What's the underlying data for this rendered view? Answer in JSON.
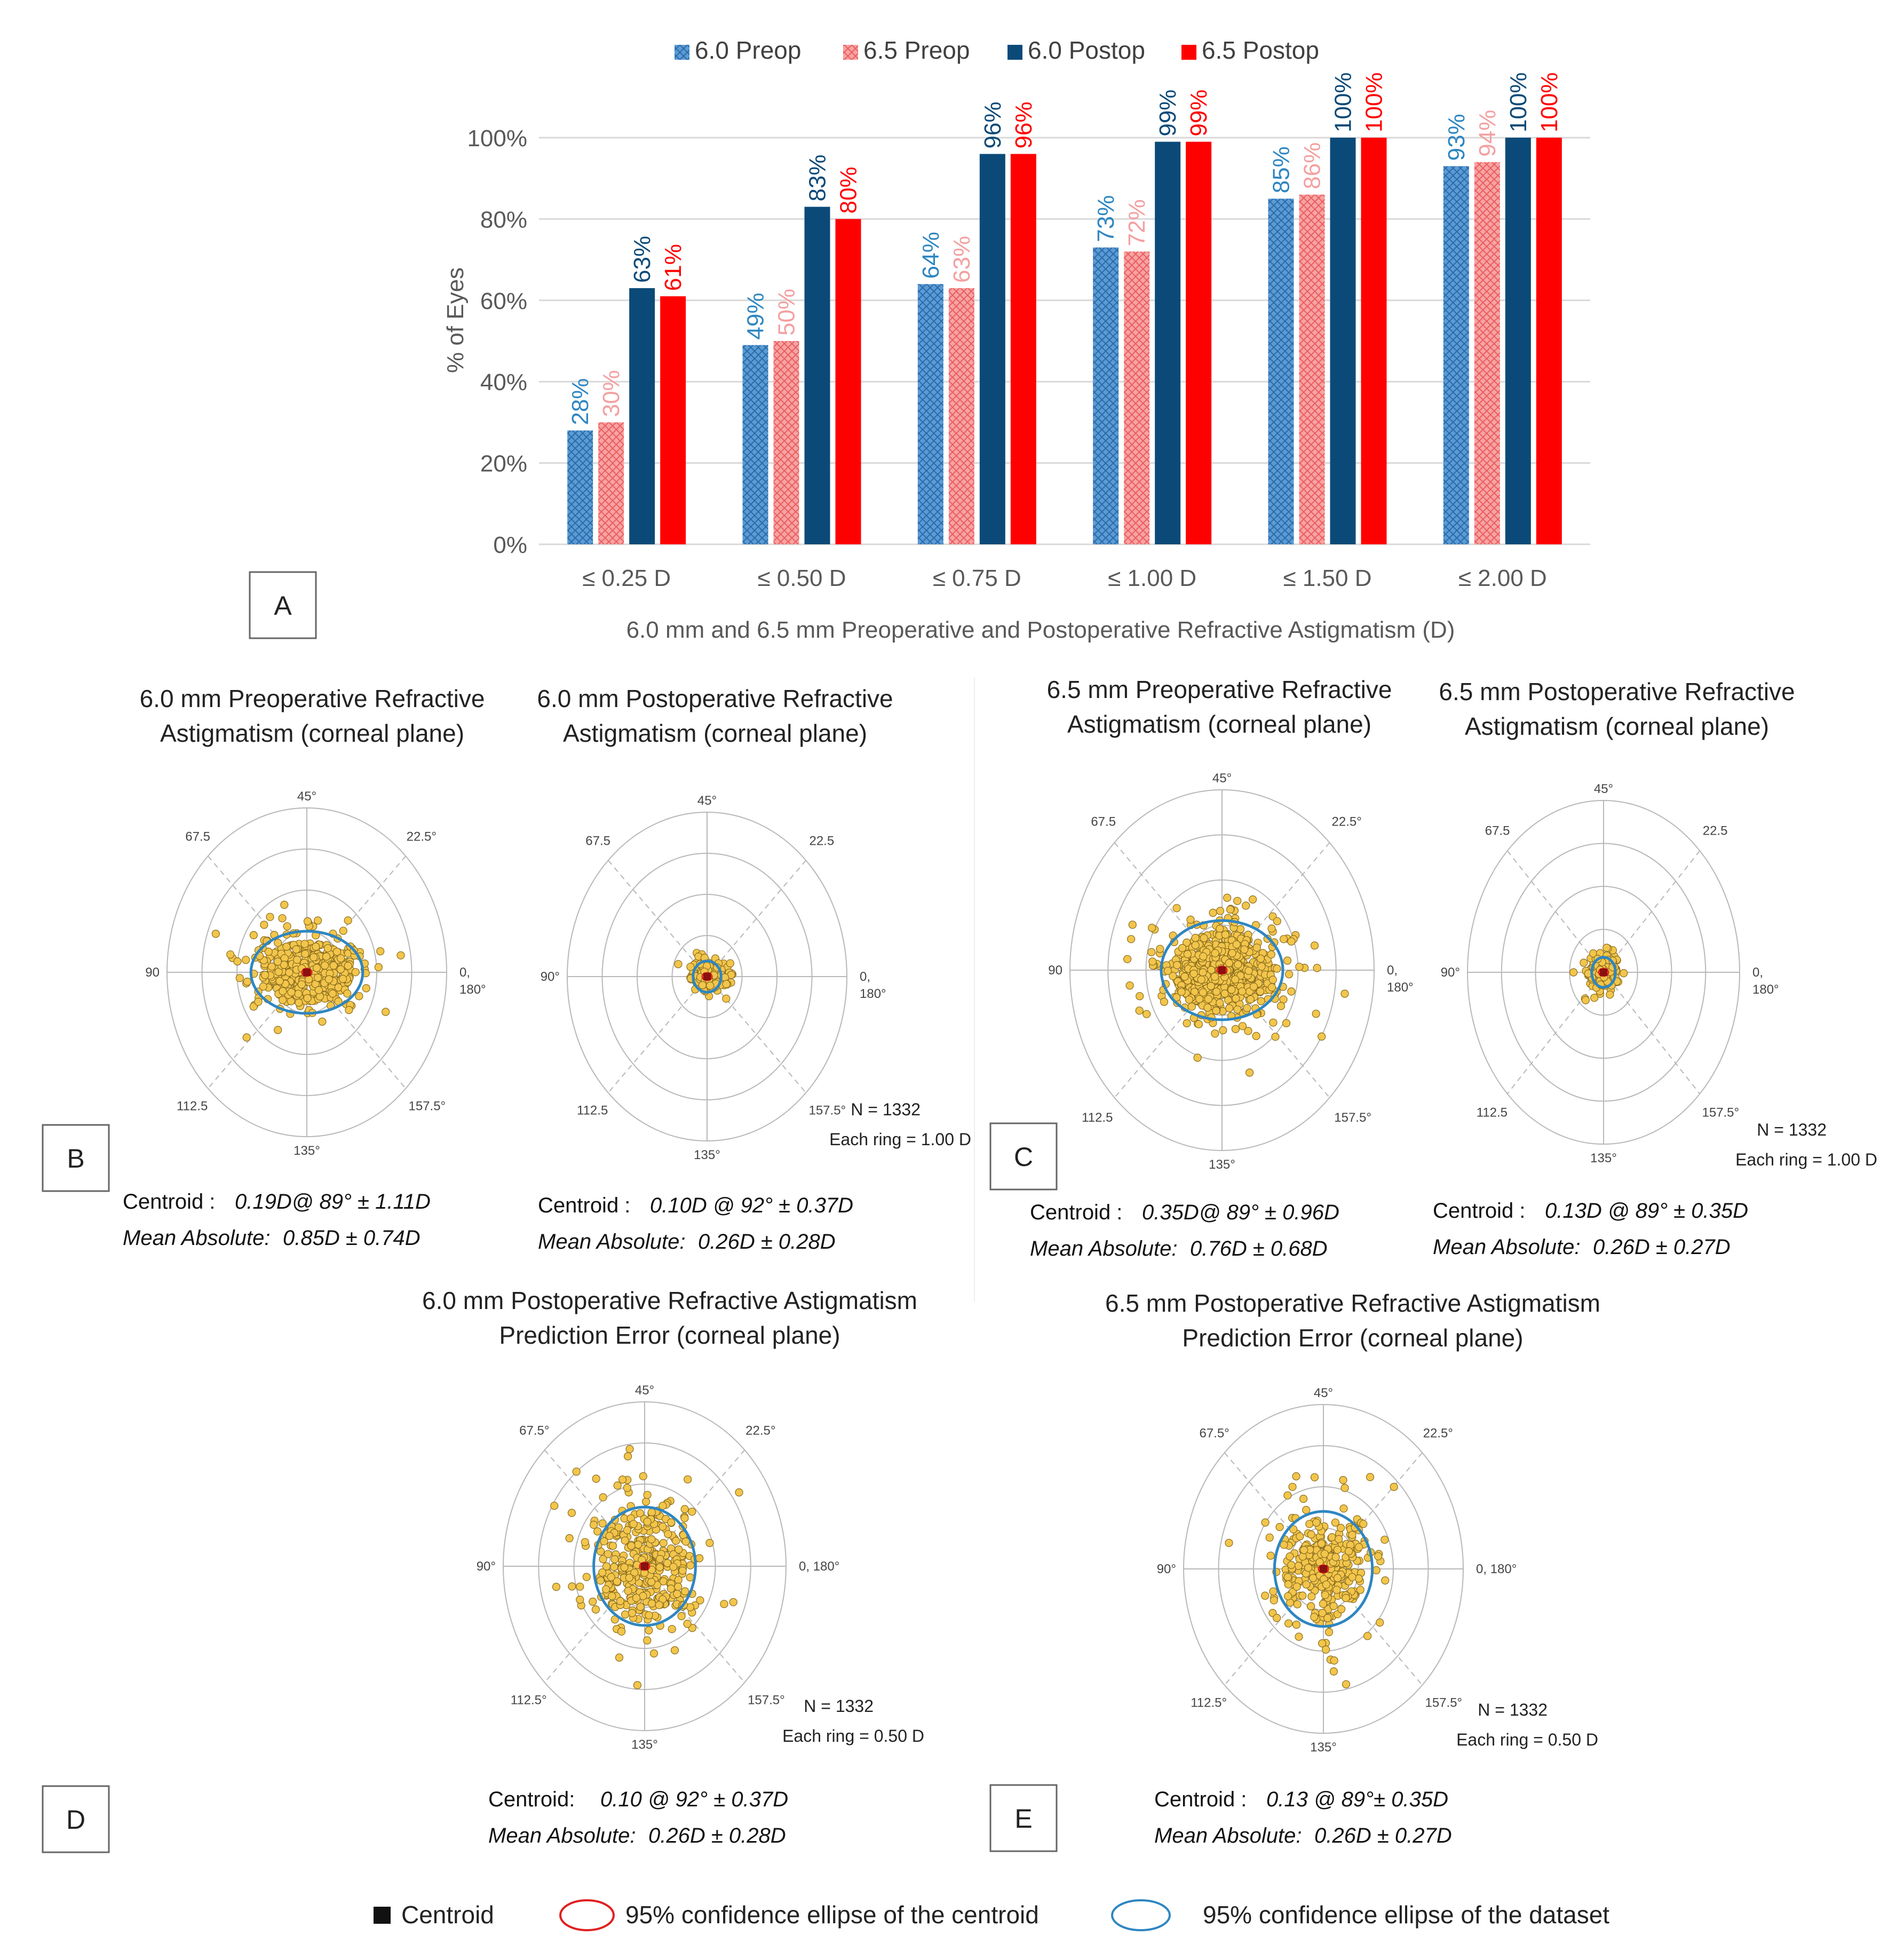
{
  "colors": {
    "pre60": "#3b82b8",
    "pre65": "#f28b8b",
    "post60": "#0b4a78",
    "post65": "#ff0000",
    "pre60_label": "#2e86c1",
    "pre65_label": "#f4a0a0",
    "post60_label": "#0b4a78",
    "post65_label": "#ff0000",
    "point": "#f2c54b",
    "point_stroke": "#8a6d1e",
    "dataset_ellipse": "#2e86c1",
    "centroid_ellipse": "#e02020",
    "centroid": "#111111",
    "grid": "#d9d9d9",
    "axis_text": "#595959",
    "polar_grid": "#b8b8b8"
  },
  "panel_labels": {
    "a": "A",
    "b": "B",
    "c": "C",
    "d": "D",
    "e": "E"
  },
  "chart_data": [
    {
      "id": "A",
      "type": "bar",
      "title": "",
      "xlabel": "6.0 mm and 6.5 mm Preoperative and Postoperative Refractive Astigmatism (D)",
      "ylabel": "% of Eyes",
      "ylim": [
        0,
        100
      ],
      "yticks": [
        "0%",
        "20%",
        "40%",
        "60%",
        "80%",
        "100%"
      ],
      "ytick_values": [
        0,
        20,
        40,
        60,
        80,
        100
      ],
      "grid": true,
      "legend_position": "top",
      "categories": [
        "≤ 0.25 D",
        "≤ 0.50 D",
        "≤ 0.75 D",
        "≤ 1.00 D",
        "≤ 1.50 D",
        "≤ 2.00 D"
      ],
      "series": [
        {
          "name": "6.0 Preop",
          "values": [
            28,
            49,
            64,
            73,
            85,
            93
          ],
          "labels": [
            "28%",
            "49%",
            "64%",
            "73%",
            "85%",
            "93%"
          ]
        },
        {
          "name": "6.5 Preop",
          "values": [
            30,
            50,
            63,
            72,
            86,
            94
          ],
          "labels": [
            "30%",
            "50%",
            "63%",
            "72%",
            "86%",
            "94%"
          ]
        },
        {
          "name": "6.0 Postop",
          "values": [
            63,
            83,
            96,
            99,
            100,
            100
          ],
          "labels": [
            "63%",
            "83%",
            "96%",
            "99%",
            "100%",
            "100%"
          ]
        },
        {
          "name": "6.5 Postop",
          "values": [
            61,
            80,
            96,
            99,
            100,
            100
          ],
          "labels": [
            "61%",
            "80%",
            "96%",
            "99%",
            "100%",
            "100%"
          ]
        }
      ]
    },
    {
      "id": "B1",
      "type": "scatter",
      "title": "6.0 mm Preoperative Refractive Astigmatism (corneal plane)",
      "title_lines": [
        "6.0 mm Preoperative Refractive",
        "Astigmatism (corneal plane)"
      ],
      "angle_labels": {
        "a45": "45°",
        "a22": "22.5°",
        "a0": "0,",
        "a180": "180°",
        "a157": "157.5°",
        "a135": "135°",
        "a112": "112.5",
        "a90": "90",
        "a67": "67.5"
      },
      "rings": 4,
      "ring_unit_d": 1.0,
      "spread_x_d": 2.3,
      "spread_y_d": 1.3,
      "dataset_ellipse_d": [
        1.6,
        1.0
      ],
      "stats": {
        "centroid_label": "Centroid :",
        "centroid_value": "0.19D@ 89° ±  1.11D",
        "mean_label": "Mean Absolute:",
        "mean_value": "0.85D ±  0.74D"
      }
    },
    {
      "id": "B2",
      "type": "scatter",
      "title": "6.0 mm Postoperative Refractive Astigmatism (corneal plane)",
      "title_lines": [
        "6.0 mm Postoperative Refractive",
        "Astigmatism (corneal plane)"
      ],
      "angle_labels": {
        "a45": "45°",
        "a22": "22.5",
        "a0": "0,",
        "a180": "180°",
        "a157": "157.5°",
        "a135": "135°",
        "a112": "112.5",
        "a90": "90°",
        "a67": "67.5"
      },
      "rings": 4,
      "ring_unit_d": 1.0,
      "spread_x_d": 0.7,
      "spread_y_d": 0.5,
      "dataset_ellipse_d": [
        0.4,
        0.38
      ],
      "n_text": "N = 1332",
      "ring_text": "Each ring = 1.00 D",
      "stats": {
        "centroid_label": "Centroid :",
        "centroid_value": "0.10D @ 92° ± 0.37D",
        "mean_label": "Mean Absolute:",
        "mean_value": "0.26D ± 0.28D"
      }
    },
    {
      "id": "C1",
      "type": "scatter",
      "title": "6.5 mm Preoperative Refractive Astigmatism (corneal plane)",
      "title_lines": [
        "6.5 mm Preoperative Refractive",
        "Astigmatism (corneal plane)"
      ],
      "angle_labels": {
        "a45": "45°",
        "a22": "22.5°",
        "a0": "0,",
        "a180": "180°",
        "a157": "157.5°",
        "a135": "135°",
        "a112": "112.5",
        "a90": "90",
        "a67": "67.5"
      },
      "rings": 4,
      "ring_unit_d": 1.0,
      "spread_x_d": 2.3,
      "spread_y_d": 1.5,
      "dataset_ellipse_d": [
        1.6,
        1.1
      ],
      "stats": {
        "centroid_label": "Centroid :",
        "centroid_value": "0.35D@ 89°  ± 0.96D",
        "mean_label": "Mean Absolute:",
        "mean_value": "0.76D ± 0.68D"
      }
    },
    {
      "id": "C2",
      "type": "scatter",
      "title": "6.5 mm Postoperative Refractive Astigmatism (corneal plane)",
      "title_lines": [
        "6.5 mm Postoperative Refractive",
        "Astigmatism (corneal plane)"
      ],
      "angle_labels": {
        "a45": "45°",
        "a22": "22.5",
        "a0": "0,",
        "a180": "180°",
        "a157": "157.5°",
        "a135": "135°",
        "a112": "112.5",
        "a90": "90°",
        "a67": "67.5"
      },
      "rings": 4,
      "ring_unit_d": 1.0,
      "spread_x_d": 0.7,
      "spread_y_d": 0.6,
      "dataset_ellipse_d": [
        0.35,
        0.35
      ],
      "n_text": "N = 1332",
      "ring_text": "Each ring = 1.00 D",
      "stats": {
        "centroid_label": "Centroid :",
        "centroid_value": "0.13D @ 89° ±  0.35D",
        "mean_label": "Mean Absolute:",
        "mean_value": "0.26D ± 0.27D"
      }
    },
    {
      "id": "D",
      "type": "scatter",
      "title": "6.0 mm Postoperative Refractive Astigmatism Prediction Error (corneal plane)",
      "title_lines": [
        "6.0 mm Postoperative Refractive Astigmatism",
        "Prediction Error (corneal plane)"
      ],
      "angle_labels": {
        "a45": "45°",
        "a22": "22.5°",
        "a0": "0, 180°",
        "a180": "",
        "a157": "157.5°",
        "a135": "135°",
        "a112": "112.5°",
        "a90": "90°",
        "a67": "67.5°"
      },
      "rings": 4,
      "ring_unit_d": 0.5,
      "spread_x_d": 1.2,
      "spread_y_d": 1.2,
      "dataset_ellipse_d": [
        0.72,
        0.72
      ],
      "n_text": "N =   1332",
      "ring_text": "Each ring = 0.50 D",
      "stats": {
        "centroid_label": "Centroid:",
        "centroid_value": "0.10 @ 92° ±  0.37D",
        "mean_label": "Mean Absolute:",
        "mean_value": "0.26D ±  0.28D"
      }
    },
    {
      "id": "E",
      "type": "scatter",
      "title": "6.5 mm Postoperative Refractive Astigmatism Prediction Error (corneal plane)",
      "title_lines": [
        "6.5 mm Postoperative Refractive Astigmatism",
        "Prediction Error (corneal plane)"
      ],
      "angle_labels": {
        "a45": "45°",
        "a22": "22.5°",
        "a0": "0, 180°",
        "a180": "",
        "a157": "157.5°",
        "a135": "135°",
        "a112": "112.5°",
        "a90": "90°",
        "a67": "67.5°"
      },
      "rings": 4,
      "ring_unit_d": 0.5,
      "spread_x_d": 1.0,
      "spread_y_d": 1.1,
      "dataset_ellipse_d": [
        0.7,
        0.7
      ],
      "n_text": "N =  1332",
      "ring_text": "Each ring = 0.50 D",
      "stats": {
        "centroid_label": "Centroid :",
        "centroid_value": "0.13 @  89°± 0.35D",
        "mean_label": "Mean Absolute:",
        "mean_value": "0.26D ± 0.27D"
      }
    }
  ],
  "legend": {
    "centroid": "Centroid",
    "centroid_ellipse": "95% confidence ellipse of the centroid",
    "dataset_ellipse": "95% confidence ellipse of the dataset"
  }
}
